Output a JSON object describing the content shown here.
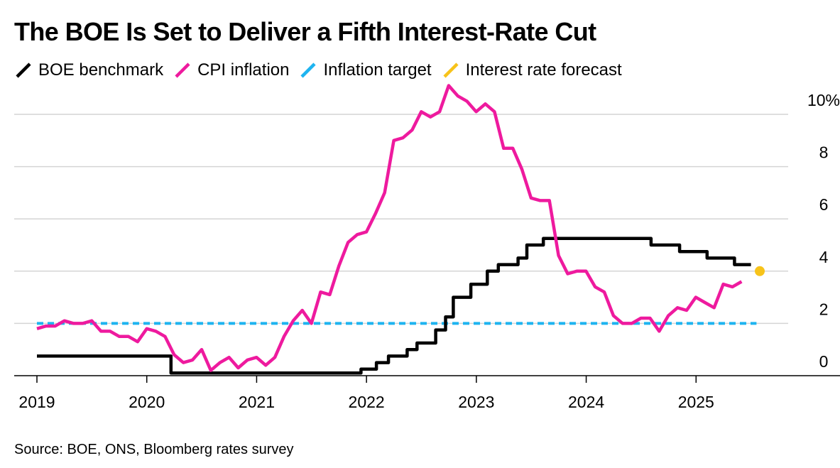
{
  "title": "The BOE Is Set to Deliver a Fifth Interest-Rate Cut",
  "source": "Source: BOE, ONS, Bloomberg rates survey",
  "colors": {
    "boe": "#000000",
    "cpi": "#ee1a9e",
    "target": "#1eb4f0",
    "forecast": "#f7c31a",
    "grid": "#d4d4d4",
    "axis": "#000000"
  },
  "chart_data": {
    "type": "line",
    "title": "The BOE Is Set to Deliver a Fifth Interest-Rate Cut",
    "xlabel": "",
    "ylabel": "",
    "xlim": [
      2019.0,
      2026.0
    ],
    "ylim": [
      0,
      10.5
    ],
    "grid": true,
    "legend_position": "top-left",
    "x_ticks": [
      2019,
      2020,
      2021,
      2022,
      2023,
      2024,
      2025
    ],
    "x_tick_labels": [
      "2019",
      "2020",
      "2021",
      "2022",
      "2023",
      "2024",
      "2025"
    ],
    "y_ticks": [
      0,
      2,
      4,
      6,
      8,
      10
    ],
    "y_tick_labels": [
      "0",
      "2",
      "4",
      "6",
      "8",
      "10%"
    ],
    "legend": [
      {
        "key": "boe",
        "label": "BOE benchmark"
      },
      {
        "key": "cpi",
        "label": "CPI inflation"
      },
      {
        "key": "target",
        "label": "Inflation target"
      },
      {
        "key": "forecast",
        "label": "Interest rate forecast"
      }
    ],
    "series": [
      {
        "name": "BOE benchmark",
        "key": "boe",
        "step": true,
        "points": [
          [
            2019.0,
            0.75
          ],
          [
            2020.2,
            0.75
          ],
          [
            2020.22,
            0.1
          ],
          [
            2021.95,
            0.1
          ],
          [
            2021.95,
            0.25
          ],
          [
            2022.09,
            0.5
          ],
          [
            2022.2,
            0.75
          ],
          [
            2022.37,
            1.0
          ],
          [
            2022.46,
            1.25
          ],
          [
            2022.63,
            1.75
          ],
          [
            2022.72,
            2.25
          ],
          [
            2022.79,
            3.0
          ],
          [
            2022.95,
            3.5
          ],
          [
            2023.1,
            4.0
          ],
          [
            2023.2,
            4.25
          ],
          [
            2023.38,
            4.5
          ],
          [
            2023.46,
            5.0
          ],
          [
            2023.61,
            5.25
          ],
          [
            2024.59,
            5.0
          ],
          [
            2024.85,
            4.75
          ],
          [
            2025.1,
            4.5
          ],
          [
            2025.35,
            4.25
          ],
          [
            2025.5,
            4.25
          ]
        ]
      },
      {
        "name": "CPI inflation",
        "key": "cpi",
        "step": false,
        "start_year": 2019.0,
        "step_years": 0.0833,
        "values": [
          1.8,
          1.9,
          1.9,
          2.1,
          2.0,
          2.0,
          2.1,
          1.7,
          1.7,
          1.5,
          1.5,
          1.3,
          1.8,
          1.7,
          1.5,
          0.8,
          0.5,
          0.6,
          1.0,
          0.2,
          0.5,
          0.7,
          0.3,
          0.6,
          0.7,
          0.4,
          0.7,
          1.5,
          2.1,
          2.5,
          2.0,
          3.2,
          3.1,
          4.2,
          5.1,
          5.4,
          5.5,
          6.2,
          7.0,
          9.0,
          9.1,
          9.4,
          10.1,
          9.9,
          10.1,
          11.1,
          10.7,
          10.5,
          10.1,
          10.4,
          10.1,
          8.7,
          8.7,
          7.9,
          6.8,
          6.7,
          6.7,
          4.6,
          3.9,
          4.0,
          4.0,
          3.4,
          3.2,
          2.3,
          2.0,
          2.0,
          2.2,
          2.2,
          1.7,
          2.3,
          2.6,
          2.5,
          3.0,
          2.8,
          2.6,
          3.5,
          3.4,
          3.6
        ]
      },
      {
        "name": "Inflation target",
        "key": "target",
        "dashed": true,
        "points": [
          [
            2019.0,
            2.0
          ],
          [
            2025.55,
            2.0
          ]
        ]
      },
      {
        "name": "Interest rate forecast",
        "key": "forecast",
        "marker": true,
        "points": [
          [
            2025.58,
            4.0
          ]
        ]
      }
    ]
  }
}
